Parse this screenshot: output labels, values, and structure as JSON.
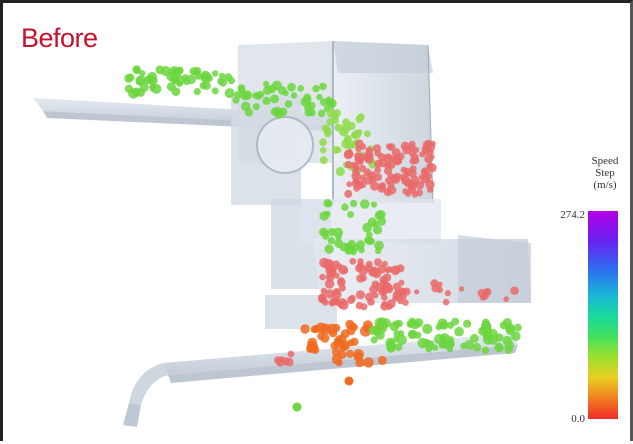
{
  "label": "Before",
  "legend": {
    "title_lines": [
      "Speed",
      "Step",
      "(m/s)"
    ],
    "max": "274.2",
    "min": "0.0",
    "gradient_colors": [
      "#b400e6",
      "#6a20f0",
      "#2f6cf0",
      "#1ab4d8",
      "#18d8a0",
      "#40e060",
      "#9ae030",
      "#e8d020",
      "#f08020",
      "#f02a2a"
    ]
  },
  "colors": {
    "label": "#c8102e",
    "steel": "#c9d2dd",
    "particle_green": "#6cd640",
    "particle_red": "#ea6a6a",
    "particle_orange": "#f06a20"
  }
}
